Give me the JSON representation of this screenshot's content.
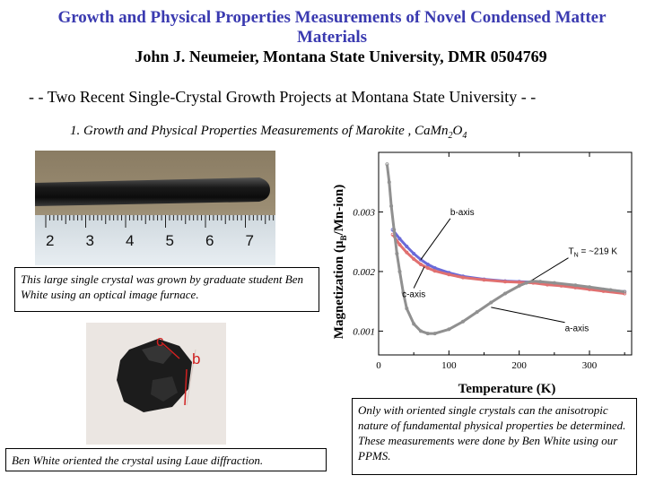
{
  "header": {
    "title": "Growth and Physical Properties Measurements of Novel Condensed Matter Materials",
    "author": "John J. Neumeier, Montana State University, DMR 0504769",
    "subtitle": "- - Two Recent Single-Crystal Growth Projects at Montana State University - -",
    "project_prefix": "1. Growth and Physical Properties Measurements of Marokite , CaMn",
    "project_sub1": "2",
    "project_mid": "O",
    "project_sub2": "4"
  },
  "photo_ruler": {
    "numbers": [
      "2",
      "3",
      "4",
      "5",
      "6",
      "7"
    ]
  },
  "photo_crystal": {
    "label_c": "c",
    "label_b": "b"
  },
  "captions": {
    "crystal": "This large single crystal was grown by graduate student Ben White using an optical image furnace.",
    "laue": "Ben White oriented the crystal using Laue diffraction.",
    "ppms": "Only with oriented single crystals can the anisotropic nature of fundamental physical properties be determined. These measurements were done by Ben White using our PPMS."
  },
  "chart_data": {
    "type": "line",
    "xlabel": "Temperature (K)",
    "ylabel_parts": [
      "Magnetization (",
      "μ",
      "B",
      "/Mn-ion)"
    ],
    "xlim": [
      0,
      360
    ],
    "ylim": [
      0.0006,
      0.004
    ],
    "xticks": [
      0,
      100,
      200,
      300
    ],
    "yticks": [
      0.001,
      0.002,
      0.003
    ],
    "ytick_labels": [
      "0.001",
      "0.002",
      "0.003"
    ],
    "grid": false,
    "series": [
      {
        "name": "b-axis",
        "color": "#6a6ad8",
        "x": [
          20,
          30,
          40,
          50,
          60,
          70,
          80,
          100,
          120,
          150,
          180,
          200,
          220,
          240,
          260,
          280,
          300,
          320,
          350
        ],
        "y": [
          0.0027,
          0.00255,
          0.00242,
          0.0023,
          0.0022,
          0.00212,
          0.00206,
          0.00198,
          0.00192,
          0.00187,
          0.00184,
          0.00183,
          0.00182,
          0.0018,
          0.00178,
          0.00176,
          0.00173,
          0.0017,
          0.00166
        ]
      },
      {
        "name": "c-axis",
        "color": "#e07070",
        "x": [
          20,
          30,
          40,
          50,
          60,
          70,
          80,
          100,
          120,
          150,
          180,
          200,
          220,
          240,
          260,
          280,
          300,
          320,
          350
        ],
        "y": [
          0.00262,
          0.00245,
          0.00232,
          0.00221,
          0.00212,
          0.00206,
          0.00201,
          0.00195,
          0.0019,
          0.00186,
          0.00183,
          0.00182,
          0.00181,
          0.00178,
          0.00176,
          0.00173,
          0.0017,
          0.00167,
          0.00163
        ]
      },
      {
        "name": "a-axis",
        "color": "#909090",
        "x": [
          12,
          15,
          18,
          22,
          26,
          30,
          35,
          40,
          50,
          60,
          70,
          80,
          100,
          120,
          140,
          160,
          180,
          200,
          210,
          219,
          230,
          250,
          280,
          300,
          330,
          350
        ],
        "y": [
          0.0038,
          0.0035,
          0.0031,
          0.0027,
          0.0023,
          0.002,
          0.00165,
          0.00138,
          0.00112,
          0.001,
          0.00096,
          0.00096,
          0.00103,
          0.00116,
          0.00132,
          0.00148,
          0.00163,
          0.00176,
          0.00181,
          0.00184,
          0.00183,
          0.00181,
          0.00177,
          0.00174,
          0.00169,
          0.00166
        ]
      }
    ],
    "annotations": [
      {
        "text": "b-axis",
        "x": 102,
        "y": 0.00295,
        "target_x": 60,
        "target_y": 0.0022
      },
      {
        "text": "c-axis",
        "x": 50,
        "y": 0.00157,
        "target_x": 65,
        "target_y": 0.00208
      },
      {
        "text": "a-axis",
        "x": 265,
        "y": 0.000995,
        "target_x": 160,
        "target_y": 0.0014
      },
      {
        "text": "~219 K",
        "prefix": "T",
        "sub": "N",
        "eq": " = ",
        "x": 270,
        "y": 0.00229,
        "target_x": 219,
        "target_y": 0.00186
      }
    ]
  }
}
